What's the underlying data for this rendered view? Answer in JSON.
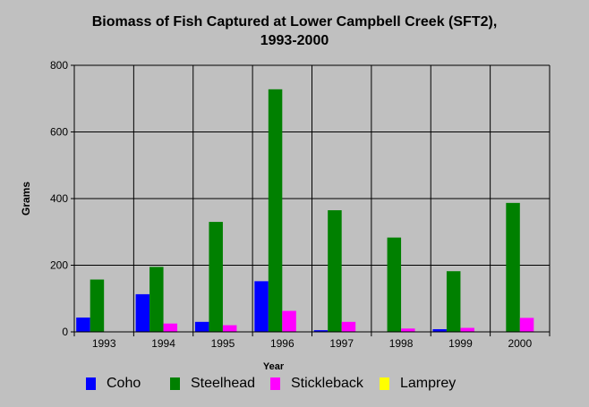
{
  "colors": {
    "background": "#c0c0c0",
    "plot_background": "#c0c0c0",
    "coho": "#0000ff",
    "steelhead": "#008000",
    "stickleback": "#ff00ff",
    "lamprey": "#ffff00"
  },
  "chart_data": {
    "type": "bar",
    "title_line1": "Biomass of Fish Captured at Lower Campbell Creek (SFT2),",
    "title_line2": "1993-2000",
    "xlabel": "Year",
    "ylabel": "Grams",
    "categories": [
      "1993",
      "1994",
      "1995",
      "1996",
      "1997",
      "1998",
      "1999",
      "2000"
    ],
    "ylim": [
      0,
      800
    ],
    "yticks": [
      0,
      200,
      400,
      600,
      800
    ],
    "grid": true,
    "legend_position": "bottom",
    "series": [
      {
        "name": "Coho",
        "color": "#0000ff",
        "values": [
          43,
          113,
          30,
          152,
          5,
          0,
          8,
          0
        ]
      },
      {
        "name": "Steelhead",
        "color": "#008000",
        "values": [
          157,
          195,
          330,
          728,
          365,
          283,
          182,
          387
        ]
      },
      {
        "name": "Stickleback",
        "color": "#ff00ff",
        "values": [
          0,
          25,
          20,
          63,
          30,
          10,
          12,
          42
        ]
      },
      {
        "name": "Lamprey",
        "color": "#ffff00",
        "values": [
          0,
          0,
          0,
          0,
          0,
          0,
          0,
          0
        ]
      }
    ]
  }
}
